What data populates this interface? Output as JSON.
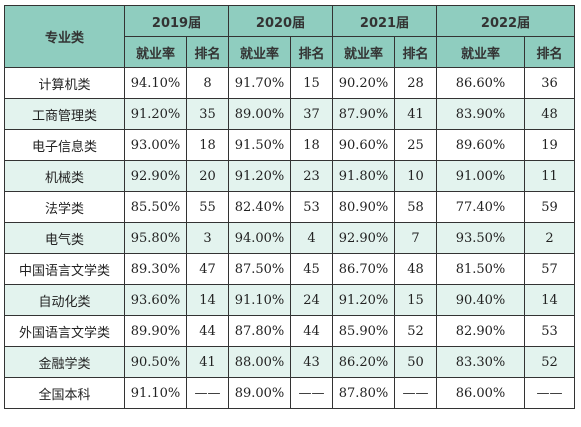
{
  "table": {
    "header_major": "专业类",
    "years": [
      "2019届",
      "2020届",
      "2021届",
      "2022届"
    ],
    "sub_employment": "就业率",
    "sub_rank": "排名",
    "rows": [
      {
        "major": "计算机类",
        "y2019": [
          "94.10%",
          "8"
        ],
        "y2020": [
          "91.70%",
          "15"
        ],
        "y2021": [
          "90.20%",
          "28"
        ],
        "y2022": [
          "86.60%",
          "36"
        ]
      },
      {
        "major": "工商管理类",
        "y2019": [
          "91.20%",
          "35"
        ],
        "y2020": [
          "89.00%",
          "37"
        ],
        "y2021": [
          "87.90%",
          "41"
        ],
        "y2022": [
          "83.90%",
          "48"
        ]
      },
      {
        "major": "电子信息类",
        "y2019": [
          "93.00%",
          "18"
        ],
        "y2020": [
          "91.50%",
          "18"
        ],
        "y2021": [
          "90.60%",
          "25"
        ],
        "y2022": [
          "89.60%",
          "19"
        ]
      },
      {
        "major": "机械类",
        "y2019": [
          "92.90%",
          "20"
        ],
        "y2020": [
          "91.20%",
          "23"
        ],
        "y2021": [
          "91.80%",
          "10"
        ],
        "y2022": [
          "91.00%",
          "11"
        ]
      },
      {
        "major": "法学类",
        "y2019": [
          "85.50%",
          "55"
        ],
        "y2020": [
          "82.40%",
          "53"
        ],
        "y2021": [
          "80.90%",
          "58"
        ],
        "y2022": [
          "77.40%",
          "59"
        ]
      },
      {
        "major": "电气类",
        "y2019": [
          "95.80%",
          "3"
        ],
        "y2020": [
          "94.00%",
          "4"
        ],
        "y2021": [
          "92.90%",
          "7"
        ],
        "y2022": [
          "93.50%",
          "2"
        ]
      },
      {
        "major": "中国语言文学类",
        "y2019": [
          "89.30%",
          "47"
        ],
        "y2020": [
          "87.50%",
          "45"
        ],
        "y2021": [
          "86.70%",
          "48"
        ],
        "y2022": [
          "81.50%",
          "57"
        ]
      },
      {
        "major": "自动化类",
        "y2019": [
          "93.60%",
          "14"
        ],
        "y2020": [
          "91.10%",
          "24"
        ],
        "y2021": [
          "91.20%",
          "15"
        ],
        "y2022": [
          "90.40%",
          "14"
        ]
      },
      {
        "major": "外国语言文学类",
        "y2019": [
          "89.90%",
          "44"
        ],
        "y2020": [
          "87.80%",
          "44"
        ],
        "y2021": [
          "85.90%",
          "52"
        ],
        "y2022": [
          "82.90%",
          "53"
        ]
      },
      {
        "major": "金融学类",
        "y2019": [
          "90.50%",
          "41"
        ],
        "y2020": [
          "88.00%",
          "43"
        ],
        "y2021": [
          "86.20%",
          "50"
        ],
        "y2022": [
          "83.30%",
          "52"
        ]
      },
      {
        "major": "全国本科",
        "y2019": [
          "91.10%",
          "——"
        ],
        "y2020": [
          "89.00%",
          "——"
        ],
        "y2021": [
          "87.80%",
          "——"
        ],
        "y2022": [
          "86.00%",
          "——"
        ]
      }
    ]
  }
}
